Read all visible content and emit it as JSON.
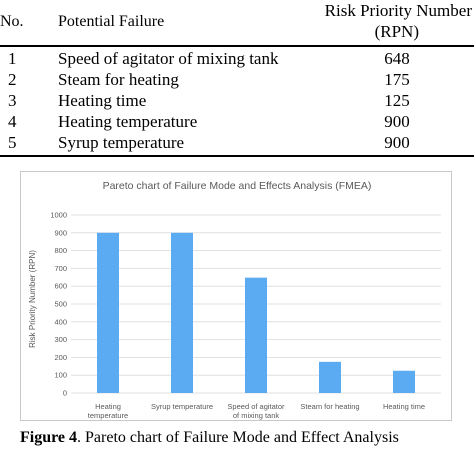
{
  "table": {
    "headers": {
      "no": "No.",
      "failure": "Potential Failure",
      "rpn_line1": "Risk Priority Number",
      "rpn_line2": "(RPN)"
    },
    "rows": [
      {
        "no": "1",
        "failure": "Speed of agitator of mixing tank",
        "rpn": "648"
      },
      {
        "no": "2",
        "failure": "Steam for heating",
        "rpn": "175"
      },
      {
        "no": "3",
        "failure": "Heating time",
        "rpn": "125"
      },
      {
        "no": "4",
        "failure": "Heating temperature",
        "rpn": "900"
      },
      {
        "no": "5",
        "failure": "Syrup temperature",
        "rpn": "900"
      }
    ]
  },
  "chart_data": {
    "type": "bar",
    "title": "Pareto chart of Failure Mode and Effects Analysis (FMEA)",
    "ylabel": "Risk Priority Number (RPN)",
    "xlabel": "",
    "categories": [
      [
        "Heating",
        "temperature"
      ],
      [
        "Syrup temperature"
      ],
      [
        "Speed of agitator",
        "of mixing tank"
      ],
      [
        "Steam for heating"
      ],
      [
        "Heating time"
      ]
    ],
    "values": [
      900,
      900,
      648,
      175,
      125
    ],
    "ylim": [
      0,
      1000
    ],
    "yticks": [
      0,
      100,
      200,
      300,
      400,
      500,
      600,
      700,
      800,
      900,
      1000
    ],
    "grid": true,
    "legend": "none",
    "bar_color": "#5aabf2",
    "grid_color": "#d9d9d9"
  },
  "caption": {
    "prefix": "Figure 4",
    "text": ". Pareto chart of Failure Mode and Effect Analysis"
  }
}
